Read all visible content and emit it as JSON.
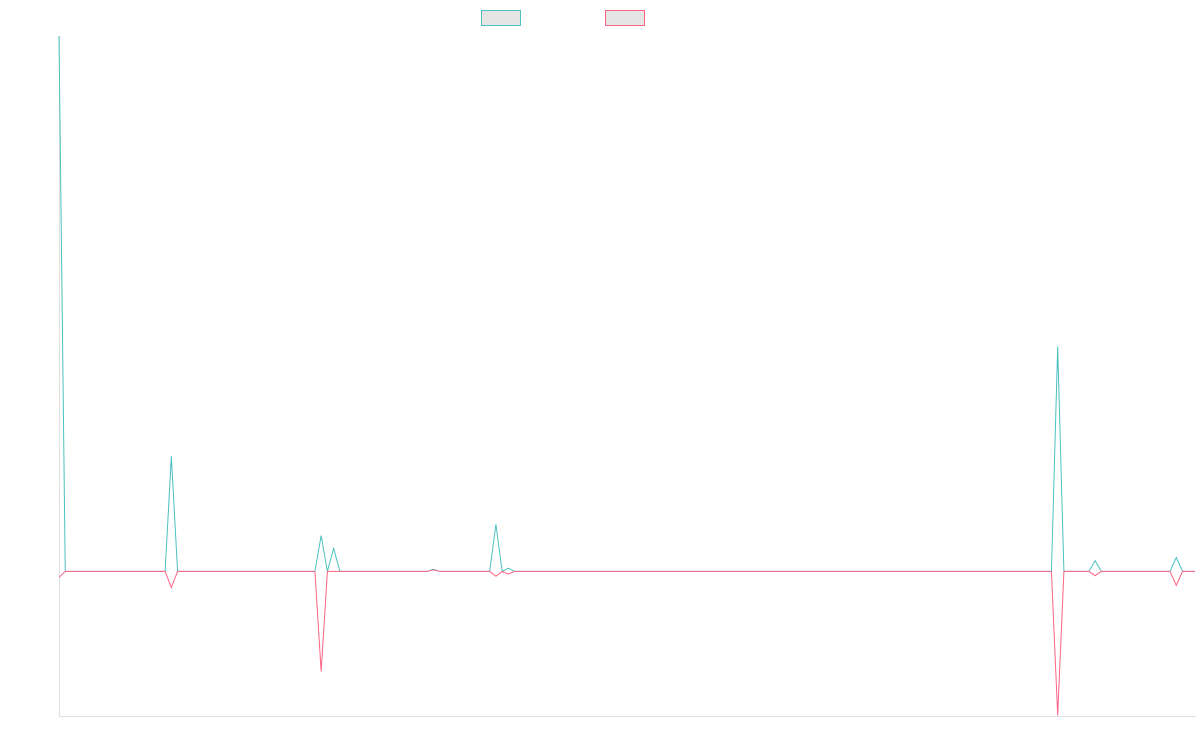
{
  "chart_data": {
    "type": "line",
    "categories": [
      null,
      null,
      null,
      null,
      null,
      null,
      null,
      null,
      null,
      null,
      null,
      null,
      null,
      null,
      null,
      null,
      null,
      null,
      null,
      null,
      null,
      null,
      null,
      null,
      null,
      null,
      null,
      null,
      null,
      null,
      null,
      null,
      null,
      null,
      null,
      null,
      null,
      null,
      null,
      null,
      null,
      null,
      null,
      null,
      null,
      null,
      null,
      null,
      null,
      null,
      null,
      null,
      null,
      null,
      null,
      null,
      null,
      null,
      null,
      null,
      null,
      null,
      null,
      null,
      null,
      null,
      null,
      null,
      null,
      null,
      null,
      null,
      null,
      null,
      null,
      null,
      null,
      null,
      null,
      null,
      null,
      null,
      null,
      null,
      null,
      null,
      null,
      null,
      null,
      null,
      null,
      null,
      null,
      null,
      null,
      null,
      null,
      null,
      null,
      null,
      null,
      null,
      null,
      null,
      null,
      null,
      null,
      null,
      null,
      null,
      null,
      null,
      null,
      null,
      null,
      null,
      null,
      null,
      null,
      null,
      null,
      null,
      null,
      null,
      null,
      null,
      null,
      null,
      null,
      null,
      null,
      null,
      null,
      null,
      null,
      null,
      null,
      null,
      null,
      null,
      null,
      null,
      null,
      null,
      null,
      null,
      null,
      null,
      null,
      null,
      null,
      null,
      null,
      null,
      null,
      null,
      null,
      null,
      null,
      null,
      null,
      null,
      null,
      null,
      null,
      null,
      null,
      null,
      null,
      null,
      null,
      null,
      null,
      null,
      null,
      null,
      null,
      null,
      null,
      null,
      null,
      null,
      null
    ],
    "series": [
      {
        "color": "#4bc0c0",
        "values": [
          100,
          0,
          0,
          0,
          0,
          0,
          0,
          0,
          0,
          0,
          0,
          0,
          0,
          0,
          0,
          0,
          0,
          0,
          21.5,
          0,
          0,
          0,
          0,
          0,
          0,
          0,
          0,
          0,
          0,
          0,
          0,
          0,
          0,
          0,
          0,
          0,
          0,
          0,
          0,
          0,
          0,
          0,
          6.7,
          0,
          4.3,
          0,
          0,
          0,
          0,
          0,
          0,
          0,
          0,
          0,
          0,
          0,
          0,
          0,
          0,
          0,
          0.4,
          0,
          0,
          0,
          0,
          0,
          0,
          0,
          0,
          0,
          8.8,
          0,
          0.6,
          0,
          0,
          0,
          0,
          0,
          0,
          0,
          0,
          0,
          0,
          0,
          0,
          0,
          0,
          0,
          0,
          0,
          0,
          0,
          0,
          0,
          0,
          0,
          0,
          0,
          0,
          0,
          0,
          0,
          0,
          0,
          0,
          0,
          0,
          0,
          0,
          0,
          0,
          0,
          0,
          0,
          0,
          0,
          0,
          0,
          0,
          0,
          0,
          0,
          0,
          0,
          0,
          0,
          0,
          0,
          0,
          0,
          0,
          0,
          0,
          0,
          0,
          0,
          0,
          0,
          0,
          0,
          0,
          0,
          0,
          0,
          0,
          0,
          0,
          0,
          0,
          0,
          0,
          0,
          0,
          0,
          0,
          0,
          0,
          0,
          0,
          0,
          42,
          0,
          0,
          0,
          0,
          0,
          2,
          0,
          0,
          0,
          0,
          0,
          0,
          0,
          0,
          0,
          0,
          0,
          0,
          2.6,
          0,
          0,
          0
        ]
      },
      {
        "color": "#ff6384",
        "values": [
          -1.1,
          0,
          0,
          0,
          0,
          0,
          0,
          0,
          0,
          0,
          0,
          0,
          0,
          0,
          0,
          0,
          0,
          0,
          -3,
          0,
          0,
          0,
          0,
          0,
          0,
          0,
          0,
          0,
          0,
          0,
          0,
          0,
          0,
          0,
          0,
          0,
          0,
          0,
          0,
          0,
          0,
          0,
          -18.7,
          0,
          0,
          0,
          0,
          0,
          0,
          0,
          0,
          0,
          0,
          0,
          0,
          0,
          0,
          0,
          0,
          0,
          0.3,
          0,
          0,
          0,
          0,
          0,
          0,
          0,
          0,
          0,
          -0.9,
          0,
          -0.5,
          0,
          0,
          0,
          0,
          0,
          0,
          0,
          0,
          0,
          0,
          0,
          0,
          0,
          0,
          0,
          0,
          0,
          0,
          0,
          0,
          0,
          0,
          0,
          0,
          0,
          0,
          0,
          0,
          0,
          0,
          0,
          0,
          0,
          0,
          0,
          0,
          0,
          0,
          0,
          0,
          0,
          0,
          0,
          0,
          0,
          0,
          0,
          0,
          0,
          0,
          0,
          0,
          0,
          0,
          0,
          0,
          0,
          0,
          0,
          0,
          0,
          0,
          0,
          0,
          0,
          0,
          0,
          0,
          0,
          0,
          0,
          0,
          0,
          0,
          0,
          0,
          0,
          0,
          0,
          0,
          0,
          0,
          0,
          0,
          0,
          0,
          0,
          -26.9,
          0,
          0,
          0,
          0,
          0,
          -0.8,
          0,
          0,
          0,
          0,
          0,
          0,
          0,
          0,
          0,
          0,
          0,
          0,
          -2.6,
          0,
          0,
          0
        ]
      }
    ],
    "ylim": [
      -27,
      100
    ],
    "legend": "top",
    "grid": false
  }
}
